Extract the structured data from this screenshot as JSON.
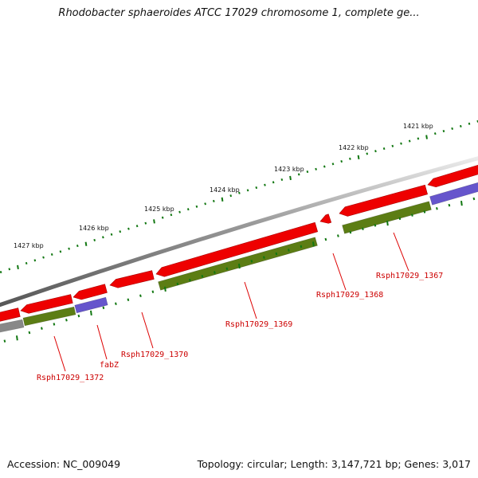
{
  "title": "Rhodobacter sphaeroides ATCC 17029 chromosome 1, complete ge...",
  "accession_text": "Accession: NC_009049",
  "summary_text": "Topology: circular; Length: 3,147,721 bp; Genes: 3,017",
  "scale": {
    "labels": [
      "1421 kbp",
      "1422 kbp",
      "1423 kbp",
      "1424 kbp",
      "1425 kbp",
      "1426 kbp",
      "1427 kbp"
    ]
  },
  "genes": [
    {
      "label": "Rsph17029_1367"
    },
    {
      "label": "Rsph17029_1368"
    },
    {
      "label": "Rsph17029_1369"
    },
    {
      "label": "Rsph17029_1370"
    },
    {
      "label": "fabZ"
    },
    {
      "label": "Rsph17029_1372"
    }
  ],
  "colors": {
    "gene": "#ee0000",
    "cds": "#5c7d14",
    "cds_alt": "#6655cc",
    "backbone": "#888888",
    "tick": "#117711",
    "label": "#cc0000"
  }
}
